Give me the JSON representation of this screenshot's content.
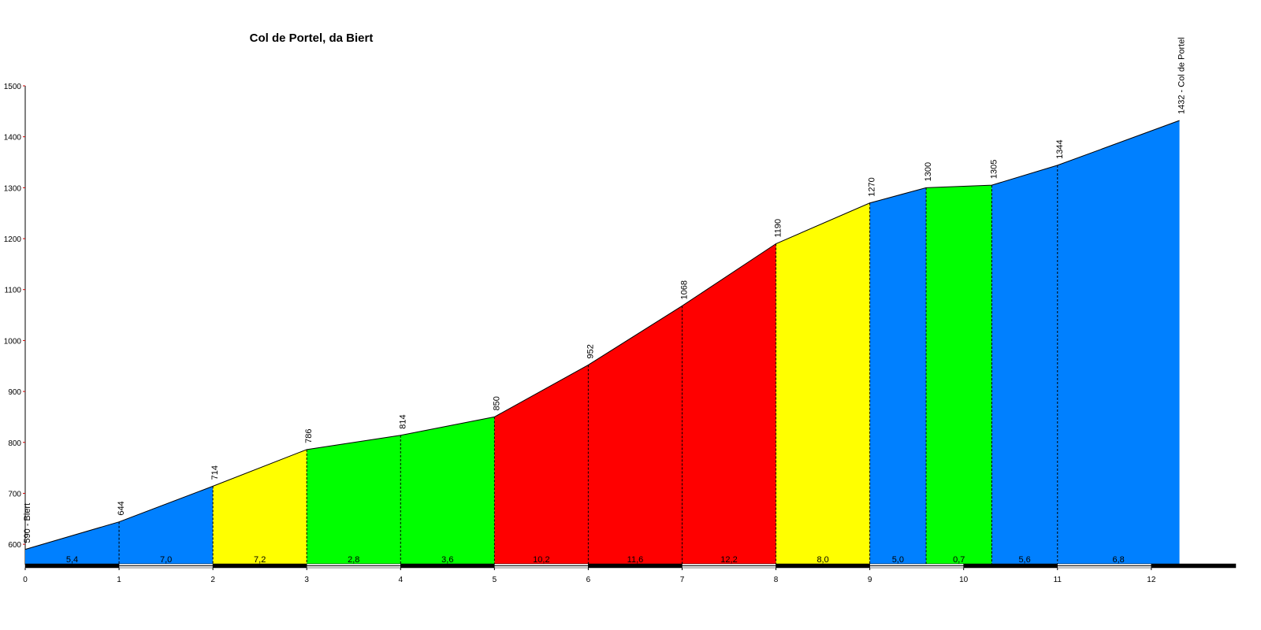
{
  "chart_data": {
    "type": "elevation-profile",
    "title": "Col de Portel, da Biert",
    "x": [
      0,
      1,
      2,
      3,
      4,
      5,
      6,
      7,
      8,
      9,
      9.6,
      10.3,
      11,
      12.3
    ],
    "values": [
      590,
      644,
      714,
      786,
      814,
      850,
      952,
      1068,
      1190,
      1270,
      1300,
      1305,
      1344,
      1432
    ],
    "value_labels": [
      "590 - Biert",
      "644",
      "714",
      "786",
      "814",
      "850",
      "952",
      "1068",
      "1190",
      "1270",
      "1300",
      "1305",
      "1344",
      "1432 - Col de Portel"
    ],
    "segment_labels": [
      "5,4",
      "7,0",
      "7,2",
      "2,8",
      "3,6",
      "10,2",
      "11,6",
      "12,2",
      "8,0",
      "5,0",
      "0,7",
      "5,6",
      "6,8"
    ],
    "segment_colors": [
      "#0080ff",
      "#0080ff",
      "#ffff00",
      "#00ff00",
      "#00ff00",
      "#ff0000",
      "#ff0000",
      "#ff0000",
      "#ffff00",
      "#0080ff",
      "#00ff00",
      "#0080ff",
      "#0080ff"
    ],
    "xlim": [
      0,
      12.9
    ],
    "xticks": [
      0,
      1,
      2,
      3,
      4,
      5,
      6,
      7,
      8,
      9,
      10,
      11,
      12
    ],
    "ylim": [
      560,
      1500
    ],
    "yticks": [
      600,
      700,
      800,
      900,
      1000,
      1100,
      1200,
      1300,
      1400,
      1500
    ]
  }
}
